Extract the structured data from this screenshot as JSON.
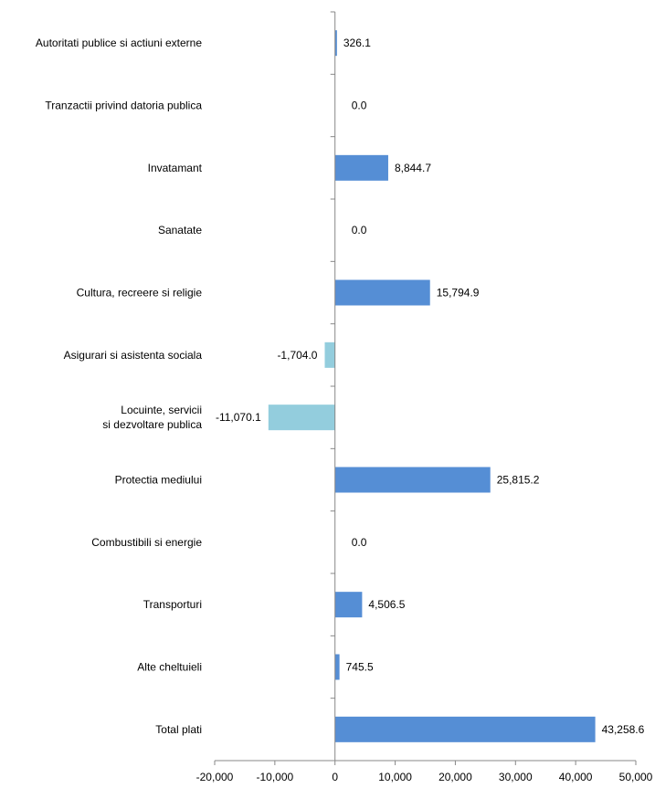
{
  "chart_data": {
    "type": "bar",
    "orientation": "horizontal",
    "categories": [
      "Autoritati publice si actiuni externe",
      "Tranzactii privind datoria publica",
      "Invatamant",
      "Sanatate",
      "Cultura, recreere si religie",
      "Asigurari si asistenta sociala",
      "Locuinte, servicii si dezvoltare publica",
      "Protectia mediului",
      "Combustibili si energie",
      "Transporturi",
      "Alte cheltuieli",
      "Total plati"
    ],
    "values": [
      326.1,
      0.0,
      8844.7,
      0.0,
      15794.9,
      -1704.0,
      -11070.1,
      25815.2,
      0.0,
      4506.5,
      745.5,
      43258.6
    ],
    "value_labels": [
      "326.1",
      "0.0",
      "8,844.7",
      "0.0",
      "15,794.9",
      "-1,704.0",
      "-11,070.1",
      "25,815.2",
      "0.0",
      "4,506.5",
      "745.5",
      "43,258.6"
    ],
    "xlim": [
      -20000,
      50000
    ],
    "xticks": [
      -20000,
      -10000,
      0,
      10000,
      20000,
      30000,
      40000,
      50000
    ],
    "xtick_labels": [
      "-20,000",
      "-10,000",
      "0",
      "10,000",
      "20,000",
      "30,000",
      "40,000",
      "50,000"
    ],
    "colors": {
      "positive": "#558ED5",
      "negative": "#93CDDD"
    },
    "title": "",
    "xlabel": "",
    "ylabel": "",
    "grid": false,
    "legend": "none"
  }
}
